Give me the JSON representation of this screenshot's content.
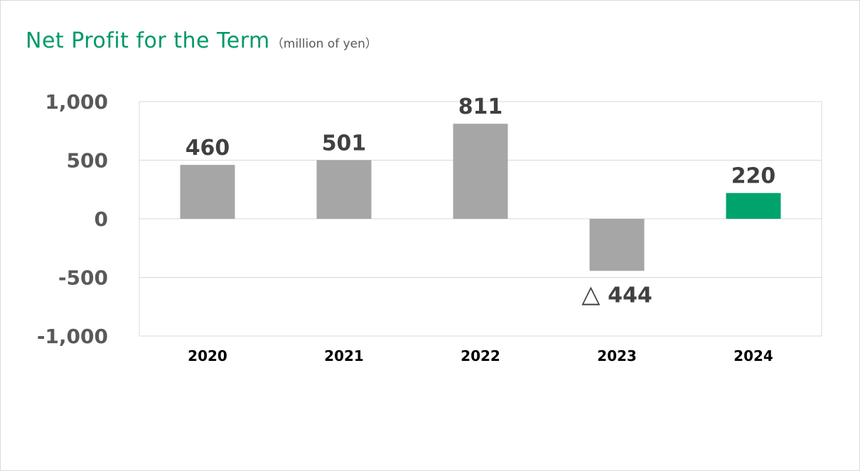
{
  "chart_data": {
    "type": "bar",
    "title": "Net Profit for the Term",
    "subtitle": "（million of yen）",
    "categories": [
      "2020",
      "2021",
      "2022",
      "2023",
      "2024"
    ],
    "series": [
      {
        "values": [
          460,
          501,
          811,
          -444,
          220
        ],
        "data_labels": [
          "460",
          "501",
          "811",
          "△ 444",
          "220"
        ]
      }
    ],
    "y_ticks": [
      "1,000",
      "500",
      "0",
      "-500",
      "-1,000"
    ],
    "ylim": [
      -1000,
      1000
    ],
    "grid": true,
    "legend": "none",
    "colors": {
      "default_bar": "#a6a6a6",
      "highlight_bar": "#00a36c",
      "title": "#009966"
    },
    "highlight_category": "2024"
  }
}
